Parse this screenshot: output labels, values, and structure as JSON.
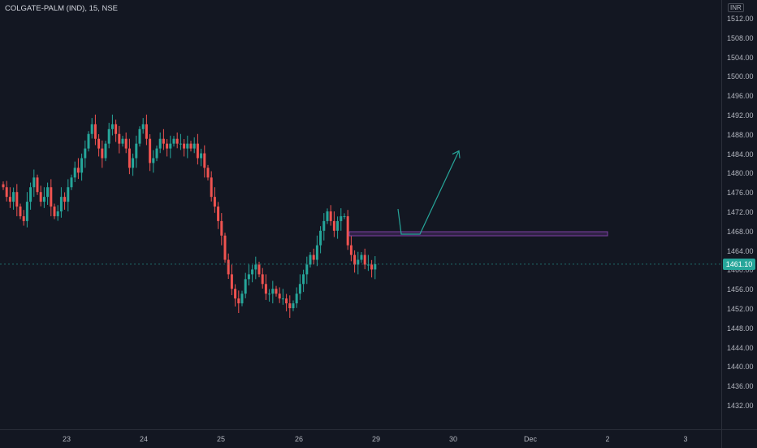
{
  "header": {
    "symbol_title": "COLGATE-PALM (IND), 15, NSE",
    "currency": "INR"
  },
  "price_axis": {
    "labels": [
      "1512.00",
      "1508.00",
      "1504.00",
      "1500.00",
      "1496.00",
      "1492.00",
      "1488.00",
      "1484.00",
      "1480.00",
      "1476.00",
      "1472.00",
      "1468.00",
      "1464.00",
      "1460.00",
      "1456.00",
      "1452.00",
      "1448.00",
      "1444.00",
      "1440.00",
      "1436.00",
      "1432.00"
    ]
  },
  "time_axis": {
    "labels": [
      "23",
      "24",
      "25",
      "26",
      "29",
      "30",
      "Dec",
      "2",
      "3"
    ]
  },
  "last_price": "1461.10",
  "colors": {
    "background": "#131722",
    "up": "#26a69a",
    "down": "#ef5350",
    "zone": "#7b3fa1",
    "arrow": "#26a69a",
    "price_tag": "#26a69a"
  },
  "chart_data": {
    "type": "candlestick",
    "symbol": "COLGATE-PALM (IND)",
    "interval": "15",
    "exchange": "NSE",
    "ylim": [
      1430,
      1514
    ],
    "x_ticks": [
      "23",
      "24",
      "25",
      "26",
      "29",
      "30",
      "Dec",
      "2",
      "3"
    ],
    "closes": [
      1477,
      1475,
      1474,
      1476,
      1473,
      1471,
      1470,
      1474,
      1477,
      1479,
      1476,
      1474,
      1475,
      1477,
      1473,
      1471,
      1472,
      1475,
      1474,
      1477,
      1479,
      1481,
      1480,
      1483,
      1485,
      1488,
      1490,
      1487,
      1485,
      1483,
      1486,
      1489,
      1490,
      1488,
      1486,
      1487,
      1485,
      1481,
      1483,
      1486,
      1489,
      1490,
      1487,
      1482,
      1483,
      1485,
      1487,
      1486,
      1485,
      1486,
      1487,
      1486,
      1486,
      1485,
      1486,
      1485,
      1486,
      1483,
      1484,
      1481,
      1479,
      1475,
      1473,
      1470,
      1467,
      1462,
      1459,
      1456,
      1454,
      1453,
      1455,
      1458,
      1459,
      1460,
      1461,
      1459,
      1457,
      1455,
      1455,
      1456,
      1455,
      1454,
      1454,
      1453,
      1452,
      1453,
      1455,
      1457,
      1459,
      1461,
      1463,
      1462,
      1465,
      1468,
      1470,
      1472,
      1470,
      1468,
      1470,
      1471,
      1471,
      1465,
      1463,
      1461,
      1462,
      1463,
      1461,
      1461,
      1460,
      1461.1
    ],
    "last": 1461.1,
    "annotations": [
      {
        "type": "zone",
        "from_price": 1467.0,
        "to_price": 1467.8
      },
      {
        "type": "projection_path",
        "prices": [
          1472.5,
          1467.3,
          1467.3,
          1484.5
        ]
      }
    ]
  }
}
